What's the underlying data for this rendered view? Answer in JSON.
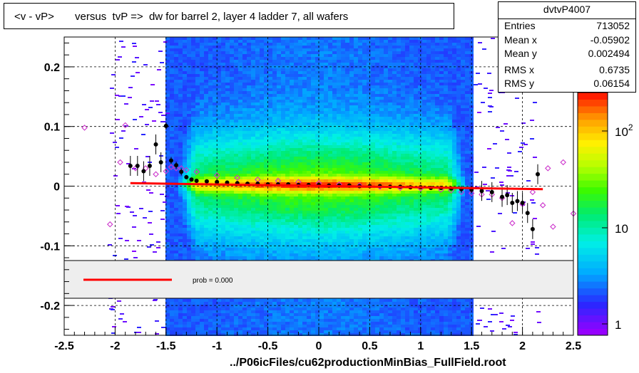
{
  "title": "<v - vP>       versus  tvP =>  dw for barrel 2, layer 4 ladder 7, all wafers",
  "stats": {
    "name": "dvtvP4007",
    "rows": [
      {
        "label": "Entries",
        "value": "713052"
      },
      {
        "label": "Mean x",
        "value": "-0.05902"
      },
      {
        "label": "Mean y",
        "value": "0.002494"
      },
      {
        "label": "RMS x",
        "value": "0.6735"
      },
      {
        "label": "RMS y",
        "value": "0.06154"
      }
    ]
  },
  "legend": {
    "prob_text": "prob = 0.000"
  },
  "footer": "../P06icFiles/cu62productionMinBias_FullField.root",
  "colors": {
    "fit_line": "#ff0000",
    "profile_filled": "#000000",
    "profile_open": "#cc33cc"
  },
  "chart_data": {
    "type": "heatmap",
    "title": "<v - vP>       versus  tvP =>  dw for barrel 2, layer 4 ladder 7, all wafers",
    "xlabel": "",
    "ylabel": "",
    "xlim": [
      -2.5,
      2.5
    ],
    "ylim": [
      -0.25,
      0.25
    ],
    "x_ticks": [
      "-2.5",
      "-2",
      "-1.5",
      "-1",
      "-0.5",
      "0",
      "0.5",
      "1",
      "1.5",
      "2",
      "2.5"
    ],
    "y_ticks": [
      "-0.2",
      "-0.1",
      "0",
      "0.1",
      "0.2"
    ],
    "z_scale": "log",
    "z_ticks": [
      "1",
      "10",
      "10^2"
    ],
    "grid": true,
    "fit_line": {
      "x": [
        -1.85,
        2.2
      ],
      "y": [
        0.005,
        -0.005
      ]
    },
    "profile_filled": {
      "x": [
        -1.85,
        -1.78,
        -1.72,
        -1.66,
        -1.6,
        -1.55,
        -1.5,
        -1.45,
        -1.4,
        -1.35,
        -1.3,
        -1.25,
        -1.2,
        -1.1,
        -1.0,
        -0.9,
        -0.8,
        -0.7,
        -0.6,
        -0.5,
        -0.4,
        -0.3,
        -0.2,
        -0.1,
        0.0,
        0.1,
        0.2,
        0.3,
        0.4,
        0.5,
        0.6,
        0.7,
        0.8,
        0.9,
        1.0,
        1.1,
        1.2,
        1.3,
        1.4,
        1.5,
        1.6,
        1.7,
        1.8,
        1.85,
        1.9,
        1.95,
        2.0,
        2.05,
        2.1,
        2.15
      ],
      "y": [
        0.034,
        0.034,
        0.025,
        0.034,
        0.07,
        0.04,
        0.101,
        0.043,
        0.035,
        0.024,
        0.015,
        0.011,
        0.009,
        0.008,
        0.007,
        0.006,
        0.005,
        0.004,
        0.004,
        0.003,
        0.003,
        0.003,
        0.002,
        0.002,
        0.002,
        0.001,
        0.001,
        0.001,
        0.0,
        0.0,
        0.0,
        -0.001,
        -0.001,
        -0.002,
        -0.002,
        -0.003,
        -0.003,
        -0.004,
        -0.005,
        -0.006,
        -0.008,
        -0.01,
        -0.018,
        -0.015,
        -0.028,
        -0.025,
        -0.028,
        -0.045,
        -0.072,
        0.02
      ]
    },
    "profile_open": {
      "x": [
        -2.3,
        -2.05,
        -1.95,
        -1.9,
        -1.8,
        -1.7,
        -1.6,
        -1.5,
        -1.45,
        -1.4,
        -1.35,
        -1.3,
        -1.2,
        -1.0,
        -0.8,
        -0.6,
        -0.4,
        -0.2,
        0.0,
        0.2,
        0.4,
        0.6,
        0.8,
        1.0,
        1.2,
        1.3,
        1.4,
        1.5,
        1.6,
        1.7,
        1.8,
        1.9,
        2.0,
        2.1,
        2.2,
        2.25,
        2.3,
        2.4,
        2.5
      ],
      "y": [
        0.098,
        -0.064,
        0.04,
        0.102,
        0.03,
        0.03,
        0.02,
        0.025,
        0.032,
        0.03,
        0.03,
        0.027,
        0.024,
        0.018,
        0.014,
        0.011,
        0.009,
        0.007,
        0.005,
        0.003,
        0.001,
        -0.001,
        -0.003,
        -0.004,
        -0.006,
        -0.007,
        -0.01,
        -0.012,
        -0.014,
        -0.014,
        -0.02,
        -0.062,
        -0.03,
        -0.01,
        -0.032,
        0.03,
        -0.068,
        0.04,
        -0.046
      ]
    }
  }
}
